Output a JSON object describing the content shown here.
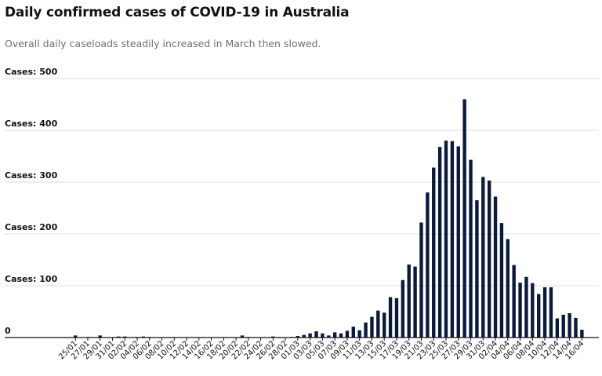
{
  "header": {
    "title": "Daily confirmed cases of COVID-19 in Australia",
    "subtitle": "Overall daily caseloads steadily increased in March then slowed."
  },
  "colors": {
    "bar": "#0c1a3a",
    "grid": "#dcdcdc",
    "axis": "#121212"
  },
  "chart_data": {
    "type": "bar",
    "title": "Daily confirmed cases of COVID-19 in Australia",
    "subtitle": "Overall daily caseloads steadily increased in March then slowed.",
    "xlabel": "",
    "ylabel": "",
    "ylim": [
      0,
      500
    ],
    "y_ticks": [
      {
        "value": 0,
        "label": "0"
      },
      {
        "value": 100,
        "label": "Cases: 100"
      },
      {
        "value": 200,
        "label": "Cases: 200"
      },
      {
        "value": 300,
        "label": "Cases: 300"
      },
      {
        "value": 400,
        "label": "Cases: 400"
      },
      {
        "value": 500,
        "label": "Cases: 500"
      }
    ],
    "grid": true,
    "categories": [
      "25/01",
      "26/01",
      "27/01",
      "28/01",
      "29/01",
      "30/01",
      "31/01",
      "01/02",
      "02/02",
      "03/02",
      "04/02",
      "05/02",
      "06/02",
      "07/02",
      "08/02",
      "09/02",
      "10/02",
      "11/02",
      "12/02",
      "13/02",
      "14/02",
      "15/02",
      "16/02",
      "17/02",
      "18/02",
      "19/02",
      "20/02",
      "21/02",
      "22/02",
      "23/02",
      "24/02",
      "25/02",
      "26/02",
      "27/02",
      "28/02",
      "29/02",
      "01/03",
      "02/03",
      "03/03",
      "04/03",
      "05/03",
      "06/03",
      "07/03",
      "08/03",
      "09/03",
      "10/03",
      "11/03",
      "12/03",
      "13/03",
      "14/03",
      "15/03",
      "16/03",
      "17/03",
      "18/03",
      "19/03",
      "20/03",
      "21/03",
      "22/03",
      "23/03",
      "24/03",
      "25/03",
      "26/03",
      "27/03",
      "28/03",
      "29/03",
      "30/03",
      "31/03",
      "01/04",
      "02/04",
      "03/04",
      "04/04",
      "05/04",
      "06/04",
      "07/04",
      "08/04",
      "09/04",
      "10/04",
      "11/04",
      "12/04",
      "13/04",
      "14/04",
      "15/04",
      "16/04"
    ],
    "tick_labels": [
      "25/01",
      "27/01",
      "29/01",
      "31/01",
      "02/02",
      "04/02",
      "06/02",
      "08/02",
      "10/02",
      "12/02",
      "14/02",
      "16/02",
      "18/02",
      "20/02",
      "22/02",
      "24/02",
      "26/02",
      "28/02",
      "01/03",
      "03/03",
      "05/03",
      "07/03",
      "09/03",
      "11/03",
      "13/03",
      "15/03",
      "17/03",
      "19/03",
      "21/03",
      "23/03",
      "25/03",
      "27/03",
      "29/03",
      "31/03",
      "02/04",
      "04/04",
      "06/04",
      "08/04",
      "10/04",
      "12/04",
      "14/04",
      "16/04"
    ],
    "values": [
      4,
      0,
      1,
      0,
      4,
      0,
      0,
      2,
      2,
      0,
      1,
      2,
      1,
      0,
      0,
      0,
      0,
      0,
      0,
      0,
      0,
      0,
      0,
      0,
      0,
      0,
      0,
      4,
      1,
      0,
      0,
      0,
      2,
      1,
      0,
      1,
      3,
      5,
      8,
      12,
      8,
      4,
      10,
      8,
      13,
      21,
      14,
      29,
      40,
      52,
      48,
      78,
      76,
      111,
      141,
      137,
      222,
      280,
      328,
      368,
      380,
      379,
      369,
      460,
      343,
      265,
      310,
      303,
      272,
      221,
      190,
      140,
      106,
      117,
      105,
      84,
      97,
      97,
      37,
      44,
      47,
      38,
      15
    ]
  }
}
